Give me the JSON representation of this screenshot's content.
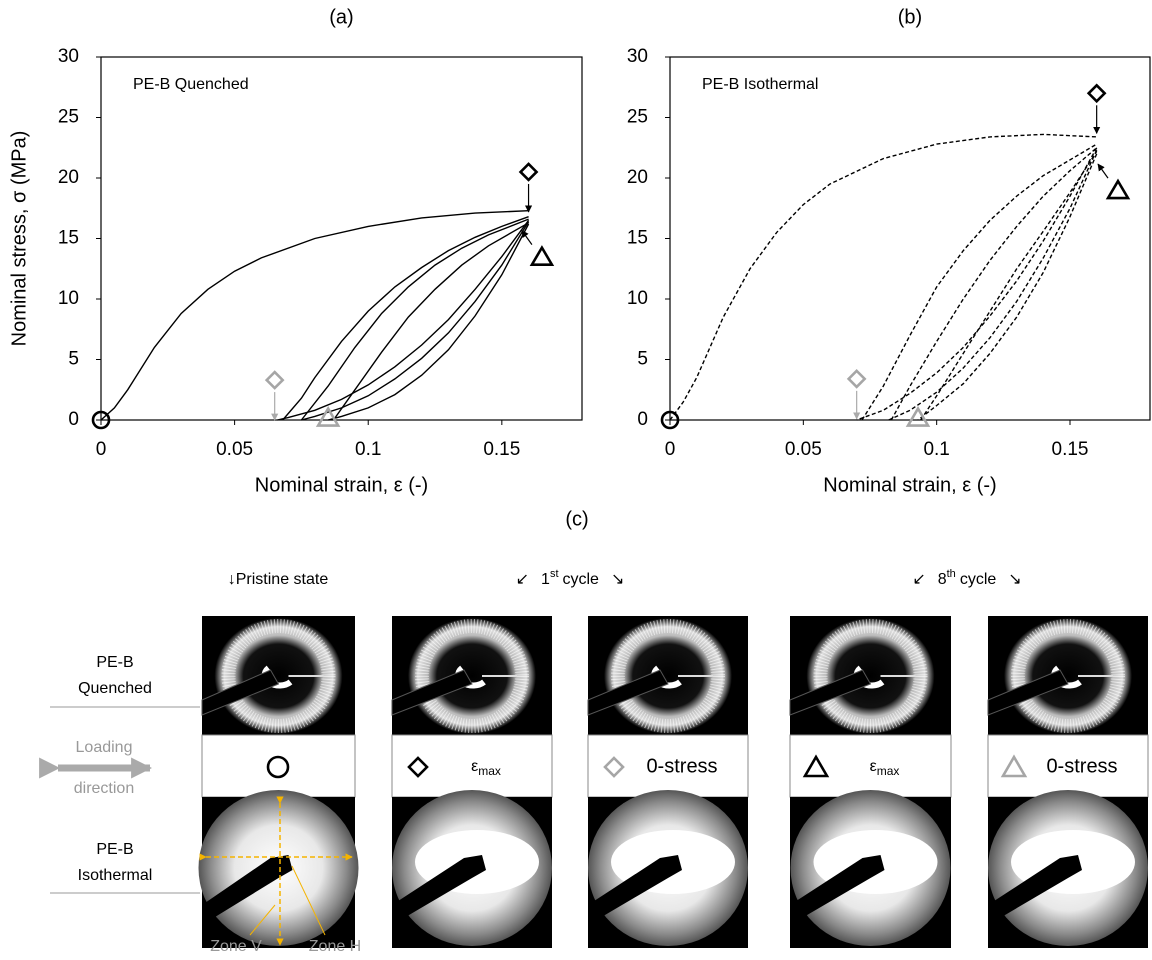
{
  "chart_data": [
    {
      "type": "line",
      "title": "(a)",
      "annotation": "PE-B Quenched",
      "x_label": "Nominal strain, ε (-)",
      "y_label": "Nominal stress, σ (MPa)",
      "xlim": [
        0,
        0.18
      ],
      "ylim": [
        0,
        30
      ],
      "xticks": [
        0,
        0.05,
        0.1,
        0.15
      ],
      "yticks": [
        0,
        5,
        10,
        15,
        20,
        25,
        30
      ],
      "linestyle": "solid",
      "color": "#000000",
      "series": [
        {
          "x": [
            0,
            0.005,
            0.01,
            0.02,
            0.03,
            0.04,
            0.05,
            0.06,
            0.08,
            0.1,
            0.12,
            0.14,
            0.16
          ],
          "values": [
            0,
            1,
            2.5,
            6,
            8.8,
            10.8,
            12.3,
            13.4,
            15,
            16,
            16.7,
            17.1,
            17.3
          ]
        },
        {
          "x": [
            0.16,
            0.15,
            0.14,
            0.13,
            0.12,
            0.11,
            0.1,
            0.09,
            0.08,
            0.07,
            0.066
          ],
          "values": [
            16.5,
            13.5,
            10.8,
            8.3,
            6.2,
            4.4,
            2.9,
            1.7,
            0.8,
            0.2,
            0
          ]
        },
        {
          "x": [
            0.068,
            0.075,
            0.08,
            0.09,
            0.1,
            0.11,
            0.12,
            0.13,
            0.14,
            0.15,
            0.16
          ],
          "values": [
            0,
            1.8,
            3.5,
            6.5,
            9,
            11,
            12.6,
            14,
            15.1,
            16,
            16.8
          ]
        },
        {
          "x": [
            0.16,
            0.15,
            0.14,
            0.13,
            0.12,
            0.11,
            0.1,
            0.09,
            0.08,
            0.075
          ],
          "values": [
            16.4,
            12.8,
            9.8,
            7.2,
            5.1,
            3.4,
            2,
            1,
            0.3,
            0
          ]
        },
        {
          "x": [
            0.075,
            0.085,
            0.095,
            0.105,
            0.115,
            0.125,
            0.135,
            0.145,
            0.16
          ],
          "values": [
            0,
            2.8,
            6,
            8.8,
            11,
            12.8,
            14.2,
            15.3,
            16.6
          ]
        },
        {
          "x": [
            0.16,
            0.15,
            0.14,
            0.13,
            0.12,
            0.11,
            0.1,
            0.09,
            0.085
          ],
          "values": [
            16.2,
            12,
            8.6,
            5.8,
            3.7,
            2.1,
            1,
            0.3,
            0
          ]
        },
        {
          "x": [
            0.087,
            0.095,
            0.105,
            0.115,
            0.125,
            0.135,
            0.145,
            0.16
          ],
          "values": [
            0,
            2.5,
            5.6,
            8.5,
            10.8,
            12.8,
            14.4,
            16.3
          ]
        }
      ],
      "markers": [
        {
          "shape": "circle",
          "x": 0,
          "y": 0,
          "color": "#000000"
        },
        {
          "shape": "diamond",
          "x": 0.16,
          "y": 20.5,
          "color": "#000000"
        },
        {
          "shape": "diamond",
          "x": 0.065,
          "y": 3.3,
          "color": "#a6a6a6"
        },
        {
          "shape": "triangle",
          "x": 0.165,
          "y": 13.5,
          "color": "#000000"
        },
        {
          "shape": "triangle",
          "x": 0.085,
          "y": 0.2,
          "color": "#a6a6a6"
        }
      ]
    },
    {
      "type": "line",
      "title": "(b)",
      "annotation": "PE-B Isothermal",
      "x_label": "Nominal strain, ε (-)",
      "xlim": [
        0,
        0.18
      ],
      "ylim": [
        0,
        30
      ],
      "xticks": [
        0,
        0.05,
        0.1,
        0.15
      ],
      "yticks": [
        0,
        5,
        10,
        15,
        20,
        25,
        30
      ],
      "linestyle": "dashed",
      "color": "#000000",
      "series": [
        {
          "x": [
            0,
            0.005,
            0.01,
            0.02,
            0.03,
            0.04,
            0.05,
            0.06,
            0.08,
            0.1,
            0.12,
            0.14,
            0.16
          ],
          "values": [
            0,
            1.5,
            3.5,
            8.5,
            12.5,
            15.5,
            17.8,
            19.5,
            21.6,
            22.8,
            23.4,
            23.6,
            23.4
          ]
        },
        {
          "x": [
            0.16,
            0.15,
            0.14,
            0.13,
            0.12,
            0.11,
            0.1,
            0.09,
            0.08,
            0.07
          ],
          "values": [
            22.5,
            18.5,
            14.8,
            11.5,
            8.6,
            6,
            3.9,
            2.2,
            0.8,
            0
          ]
        },
        {
          "x": [
            0.072,
            0.08,
            0.09,
            0.1,
            0.11,
            0.12,
            0.13,
            0.14,
            0.15,
            0.16
          ],
          "values": [
            0,
            2.8,
            7,
            11,
            14,
            16.5,
            18.5,
            20.2,
            21.5,
            22.8
          ]
        },
        {
          "x": [
            0.16,
            0.15,
            0.14,
            0.13,
            0.12,
            0.11,
            0.1,
            0.09,
            0.082
          ],
          "values": [
            22.3,
            17.5,
            13.4,
            9.8,
            6.8,
            4.3,
            2.3,
            0.8,
            0
          ]
        },
        {
          "x": [
            0.083,
            0.09,
            0.1,
            0.11,
            0.12,
            0.13,
            0.14,
            0.15,
            0.16
          ],
          "values": [
            0,
            2.8,
            6.5,
            10,
            13.2,
            16,
            18.5,
            20.6,
            22.5
          ]
        },
        {
          "x": [
            0.16,
            0.15,
            0.14,
            0.13,
            0.12,
            0.11,
            0.1,
            0.093
          ],
          "values": [
            22,
            16.8,
            12.2,
            8.5,
            5.5,
            3,
            1.2,
            0
          ]
        },
        {
          "x": [
            0.094,
            0.1,
            0.11,
            0.12,
            0.13,
            0.14,
            0.15,
            0.16
          ],
          "values": [
            0,
            2,
            5.5,
            9,
            12.5,
            15.6,
            18.8,
            22.2
          ]
        }
      ],
      "markers": [
        {
          "shape": "circle",
          "x": 0,
          "y": 0,
          "color": "#000000"
        },
        {
          "shape": "diamond",
          "x": 0.16,
          "y": 27,
          "color": "#000000"
        },
        {
          "shape": "diamond",
          "x": 0.07,
          "y": 3.4,
          "color": "#a6a6a6"
        },
        {
          "shape": "triangle",
          "x": 0.168,
          "y": 19,
          "color": "#000000"
        },
        {
          "shape": "triangle",
          "x": 0.093,
          "y": 0.2,
          "color": "#a6a6a6"
        }
      ]
    }
  ],
  "panel_c": {
    "title": "(c)",
    "pristine_header": "↓Pristine state",
    "cycle_headers": [
      {
        "left": "↙",
        "number": "1",
        "suffix": "st",
        "word": "cycle",
        "right": "↘"
      },
      {
        "left": "↙",
        "number": "8",
        "suffix": "th",
        "word": "cycle",
        "right": "↘"
      }
    ],
    "rows": [
      [
        "PE-B",
        "Quenched"
      ],
      [
        "PE-B",
        "Isothermal"
      ]
    ],
    "loading": [
      "Loading",
      "direction"
    ],
    "cells": [
      {
        "symbol": "ε",
        "subscript": "max"
      },
      {
        "text": "0-stress"
      },
      {
        "symbol": "ε",
        "subscript": "max"
      },
      {
        "text": "0-stress"
      }
    ],
    "zones": [
      "Zone V",
      "Zone H"
    ]
  }
}
